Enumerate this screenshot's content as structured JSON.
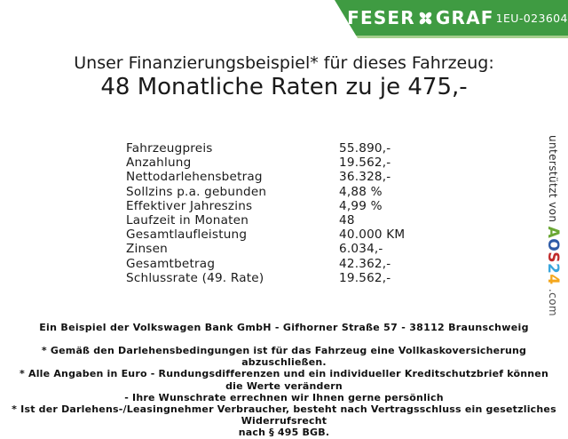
{
  "banner": {
    "brand_left": "FESER",
    "brand_right": "GRAF",
    "code": "1EU-023604",
    "green": "#3f9b42",
    "light_green": "#a5cf8d",
    "text_color": "#ffffff"
  },
  "title": {
    "line1": "Unser Finanzierungsbeispiel* für dieses Fahrzeug:",
    "line2": "48 Monatliche Raten zu je 475,-"
  },
  "finance_table": {
    "rows": [
      {
        "label": "Fahrzeugpreis",
        "value": "55.890,-"
      },
      {
        "label": "Anzahlung",
        "value": "19.562,-"
      },
      {
        "label": "Nettodarlehensbetrag",
        "value": "36.328,-"
      },
      {
        "label": "Sollzins p.a. gebunden",
        "value": "4,88 %"
      },
      {
        "label": "Effektiver Jahreszins",
        "value": "4,99 %"
      },
      {
        "label": "Laufzeit in Monaten",
        "value": "48"
      },
      {
        "label": "Gesamtlaufleistung",
        "value": "40.000 KM"
      },
      {
        "label": "Zinsen",
        "value": "6.034,-"
      },
      {
        "label": "Gesamtbetrag",
        "value": "42.362,-"
      },
      {
        "label": "Schlussrate (49. Rate)",
        "value": "19.562,-"
      }
    ]
  },
  "bank_line": "Ein Beispiel der Volkswagen Bank GmbH - Gifhorner Straße 57 - 38112 Braunschweig",
  "disclaimers": [
    "* Gemäß den Darlehensbedingungen ist für das Fahrzeug eine Vollkaskoversicherung abzuschließen.",
    "* Alle Angaben in Euro - Rundungsdifferenzen und ein individueller Kreditschutzbrief können die Werte verändern",
    "- Ihre Wunschrate errechnen wir Ihnen gerne persönlich",
    "* Ist der Darlehens-/Leasingnehmer Verbraucher, besteht nach Vertragsschluss ein gesetzliches Widerrufsrecht",
    "nach § 495 BGB."
  ],
  "sidebar": {
    "prefix": "unterstützt von ",
    "logo_letters": [
      {
        "ch": "A",
        "color": "#6aa734"
      },
      {
        "ch": "O",
        "color": "#2e5ba7"
      },
      {
        "ch": "S",
        "color": "#c02b2b"
      },
      {
        "ch": "2",
        "color": "#3aa6dd"
      },
      {
        "ch": "4",
        "color": "#f4a71d"
      }
    ],
    "suffix": ".com"
  }
}
